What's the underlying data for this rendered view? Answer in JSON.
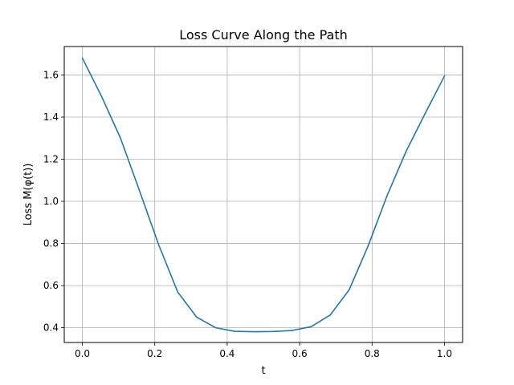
{
  "chart_data": {
    "type": "line",
    "title": "Loss Curve Along the Path",
    "xlabel": "t",
    "ylabel": "Loss M(φ(t))",
    "xlim": [
      -0.05,
      1.05
    ],
    "ylim": [
      0.33,
      1.735
    ],
    "xticks": [
      0.0,
      0.2,
      0.4,
      0.6,
      0.8,
      1.0
    ],
    "xtick_labels": [
      "0.0",
      "0.2",
      "0.4",
      "0.6",
      "0.8",
      "1.0"
    ],
    "yticks": [
      0.4,
      0.6,
      0.8,
      1.0,
      1.2,
      1.4,
      1.6
    ],
    "ytick_labels": [
      "0.4",
      "0.6",
      "0.8",
      "1.0",
      "1.2",
      "1.4",
      "1.6"
    ],
    "grid": true,
    "line_color": "#1f77b4",
    "series": [
      {
        "x": [
          0.0,
          0.0526,
          0.1053,
          0.1579,
          0.2105,
          0.2632,
          0.3158,
          0.3684,
          0.4211,
          0.4737,
          0.5263,
          0.5789,
          0.6316,
          0.6842,
          0.7368,
          0.7895,
          0.8421,
          0.8947,
          0.9474,
          1.0
        ],
        "values": [
          1.68,
          1.5,
          1.3,
          1.05,
          0.795,
          0.57,
          0.45,
          0.4,
          0.383,
          0.381,
          0.382,
          0.387,
          0.405,
          0.46,
          0.58,
          0.79,
          1.03,
          1.24,
          1.42,
          1.595
        ]
      }
    ]
  }
}
